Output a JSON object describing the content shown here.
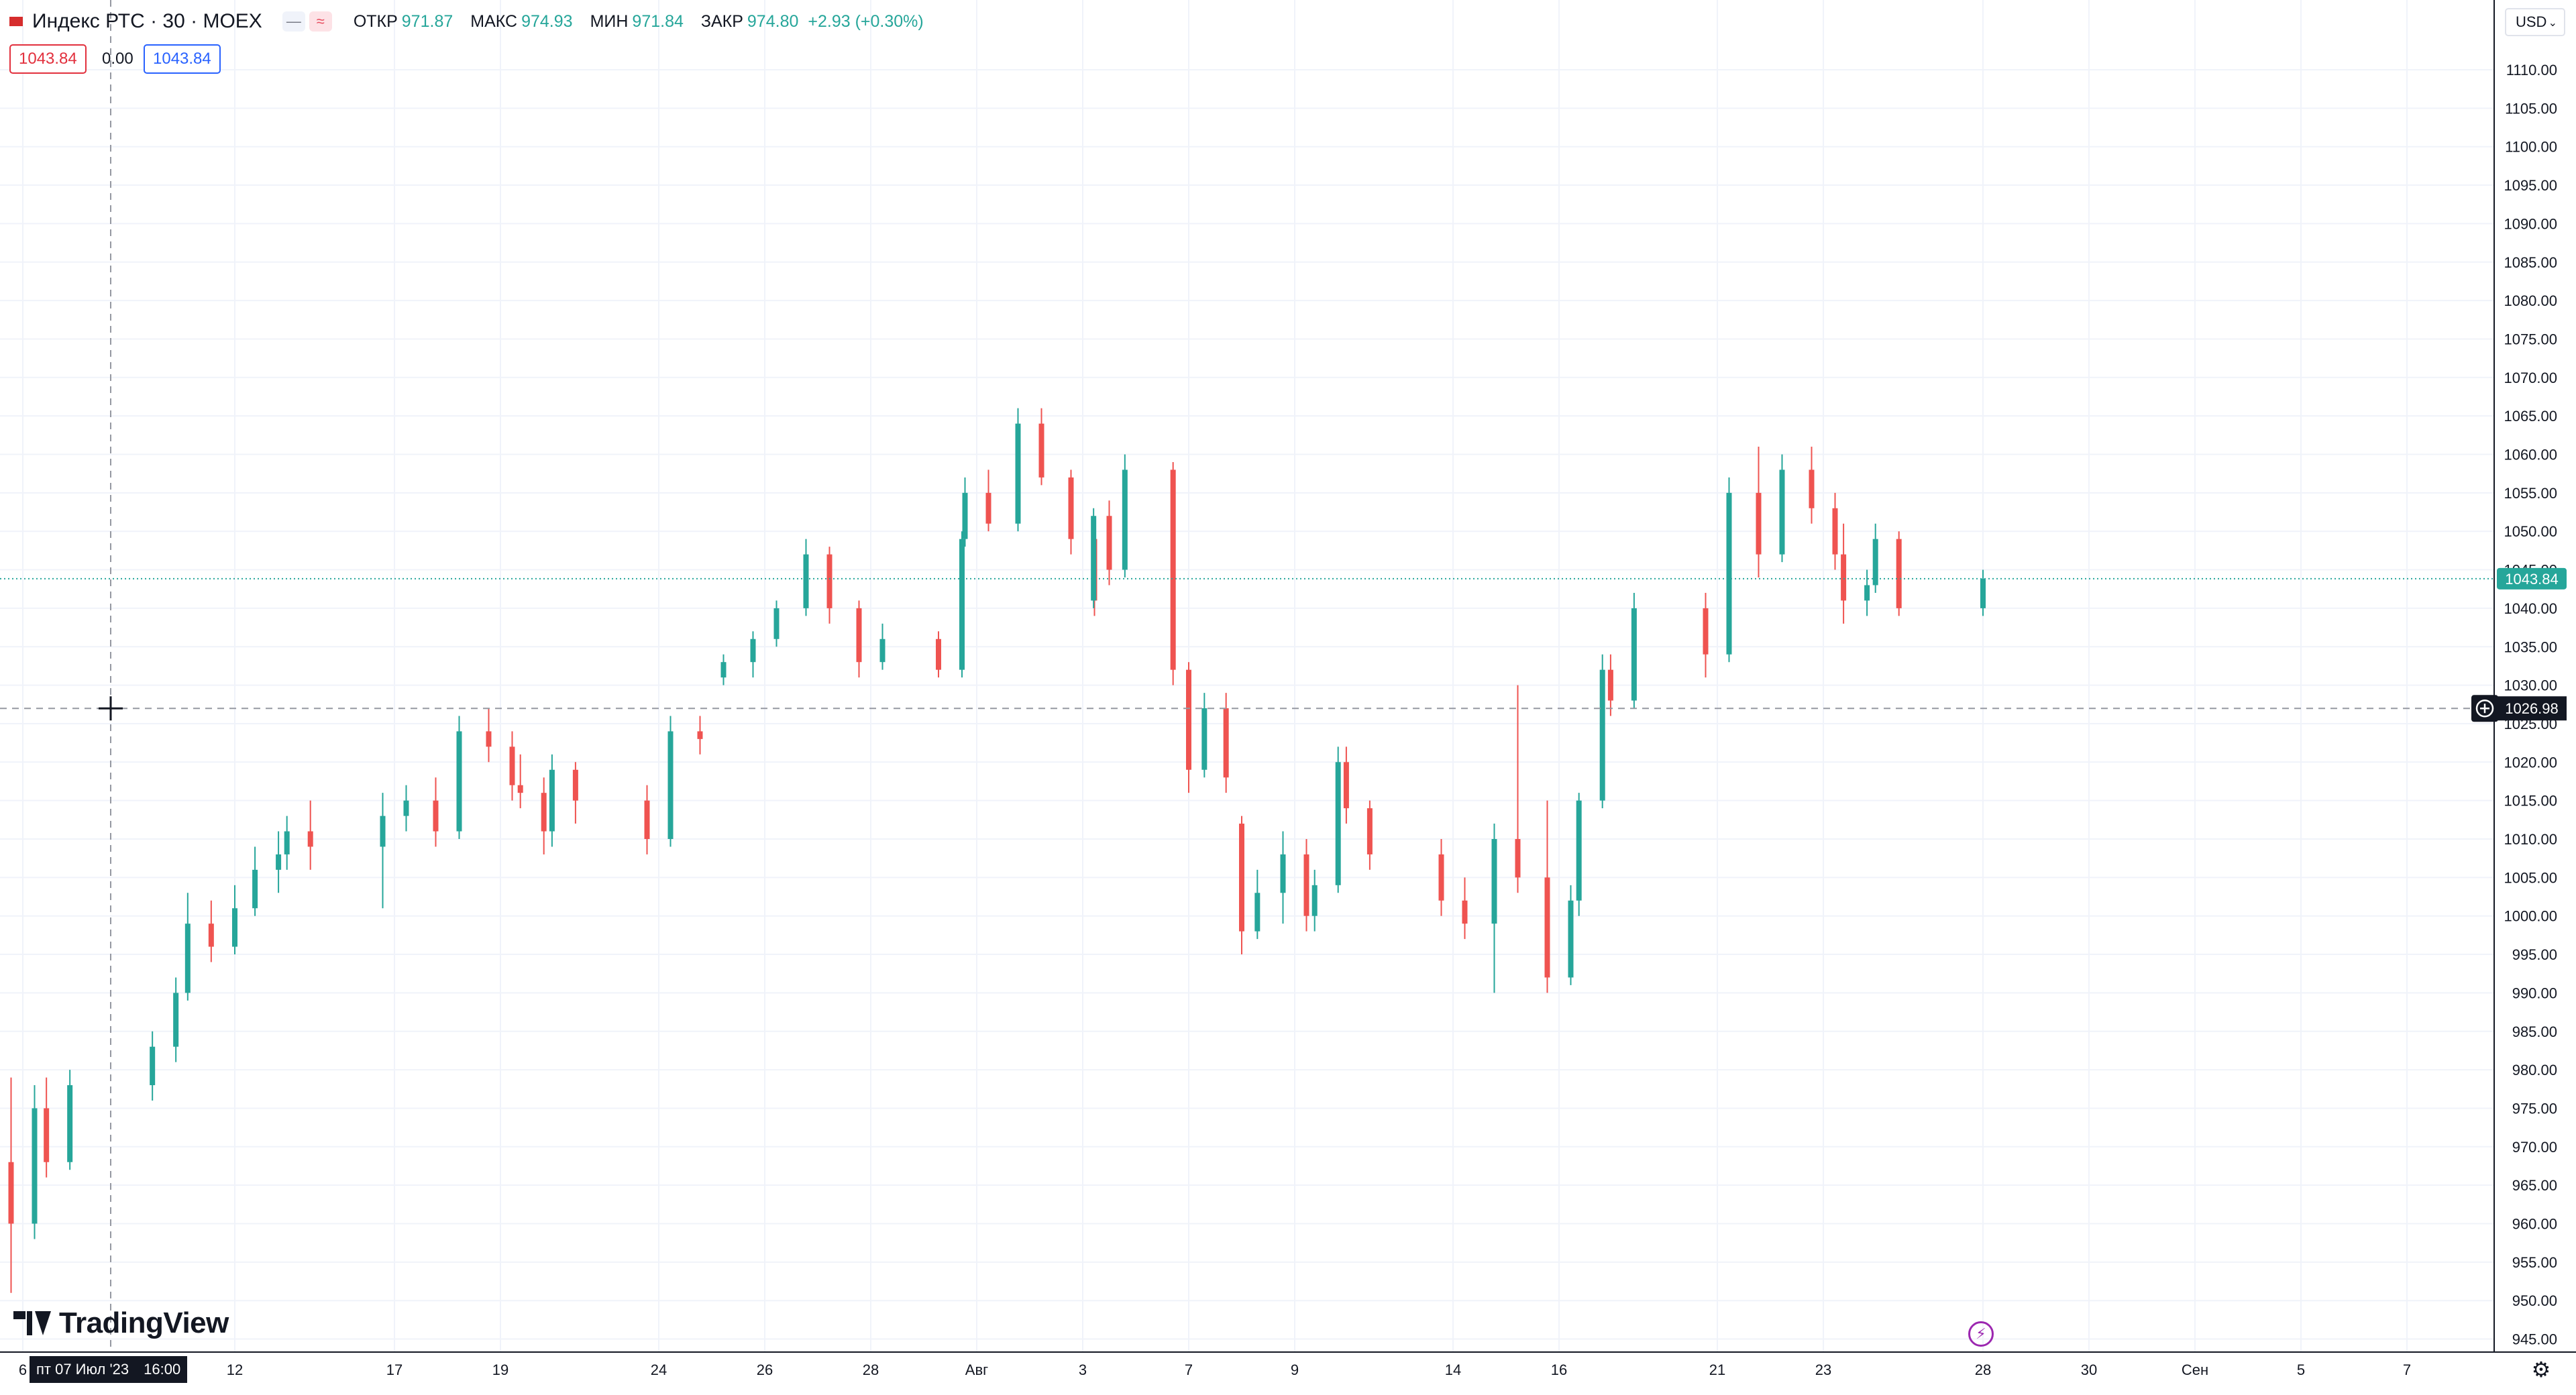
{
  "header": {
    "symbol": "Индекс РТС · 30 · MOEX",
    "open_label": "ОТКР",
    "open_value": "971.87",
    "high_label": "МАКС",
    "high_value": "974.93",
    "low_label": "МИН",
    "low_value": "971.84",
    "close_label": "ЗАКР",
    "close_value": "974.80",
    "change": "+2.93 (+0.30%)",
    "currency": "USD"
  },
  "trade_boxes": {
    "sell": "1043.84",
    "spread": "0.00",
    "buy": "1043.84"
  },
  "crosshair": {
    "price_label": "1026.98",
    "time_label_day": "пт 07 Июл '23",
    "time_label_time": "16:00"
  },
  "brand": "TradingView",
  "colors": {
    "up": "#26a69a",
    "down": "#ef5350",
    "grid": "#f0f3fa",
    "last_price": "#26a69a",
    "dark": "#131722"
  },
  "icons": [
    "search-icon",
    "settings-icon",
    "lightning-icon",
    "plus-circle-icon",
    "chevron-down-icon",
    "wave-icon",
    "minus-icon"
  ],
  "chart_data": {
    "type": "candlestick",
    "xlabel": "",
    "ylabel": "",
    "ylim": [
      943,
      1114
    ],
    "price_ticks": [
      1110,
      1105,
      1100,
      1095,
      1090,
      1085,
      1080,
      1075,
      1070,
      1065,
      1060,
      1055,
      1050,
      1045,
      1040,
      1035,
      1030,
      1025,
      1020,
      1015,
      1010,
      1005,
      1000,
      995,
      990,
      985,
      980,
      975,
      970,
      965,
      960,
      955,
      950,
      945
    ],
    "price_tick_labels": [
      "1110.00",
      "1105.00",
      "1100.00",
      "1095.00",
      "1090.00",
      "1085.00",
      "1080.00",
      "1075.00",
      "1070.00",
      "1065.00",
      "1060.00",
      "1055.00",
      "1050.00",
      "1045.00",
      "1040.00",
      "1035.00",
      "1030.00",
      "1025.00",
      "1020.00",
      "1015.00",
      "1010.00",
      "1005.00",
      "1000.00",
      "995.00",
      "990.00",
      "985.00",
      "980.00",
      "975.00",
      "970.00",
      "965.00",
      "960.00",
      "955.00",
      "950.00",
      "945.00"
    ],
    "time_ticks": [
      {
        "label": "6",
        "date": "2023-07-06"
      },
      {
        "label": "12",
        "date": "2023-07-12"
      },
      {
        "label": "17",
        "date": "2023-07-17"
      },
      {
        "label": "19",
        "date": "2023-07-19"
      },
      {
        "label": "24",
        "date": "2023-07-24"
      },
      {
        "label": "26",
        "date": "2023-07-26"
      },
      {
        "label": "28",
        "date": "2023-07-28"
      },
      {
        "label": "Авг",
        "date": "2023-08-01"
      },
      {
        "label": "3",
        "date": "2023-08-03"
      },
      {
        "label": "7",
        "date": "2023-08-07"
      },
      {
        "label": "9",
        "date": "2023-08-09"
      },
      {
        "label": "14",
        "date": "2023-08-14"
      },
      {
        "label": "16",
        "date": "2023-08-16"
      },
      {
        "label": "21",
        "date": "2023-08-21"
      },
      {
        "label": "23",
        "date": "2023-08-23"
      },
      {
        "label": "28",
        "date": "2023-08-28"
      },
      {
        "label": "30",
        "date": "2023-08-30"
      },
      {
        "label": "Сен",
        "date": "2023-09-01"
      },
      {
        "label": "5",
        "date": "2023-09-05"
      },
      {
        "label": "7",
        "date": "2023-09-07"
      }
    ],
    "last_price": 1043.84,
    "last_price_label": "1043.84",
    "crosshair_price": 1026.98,
    "series": [
      {
        "date": "2023-07-06",
        "open": 968,
        "high": 979,
        "low": 951,
        "close": 960
      },
      {
        "date": "2023-07-06",
        "open": 960,
        "high": 978,
        "low": 958,
        "close": 975
      },
      {
        "date": "2023-07-07",
        "open": 975,
        "high": 979,
        "low": 966,
        "close": 968
      },
      {
        "date": "2023-07-07",
        "open": 968,
        "high": 980,
        "low": 967,
        "close": 978
      },
      {
        "date": "2023-07-10",
        "open": 978,
        "high": 985,
        "low": 976,
        "close": 983
      },
      {
        "date": "2023-07-10",
        "open": 983,
        "high": 992,
        "low": 981,
        "close": 990
      },
      {
        "date": "2023-07-11",
        "open": 990,
        "high": 1003,
        "low": 989,
        "close": 999
      },
      {
        "date": "2023-07-11",
        "open": 999,
        "high": 1002,
        "low": 994,
        "close": 996
      },
      {
        "date": "2023-07-12",
        "open": 996,
        "high": 1004,
        "low": 995,
        "close": 1001
      },
      {
        "date": "2023-07-13",
        "open": 1001,
        "high": 1009,
        "low": 1000,
        "close": 1006
      },
      {
        "date": "2023-07-13",
        "open": 1006,
        "high": 1011,
        "low": 1003,
        "close": 1008
      },
      {
        "date": "2023-07-14",
        "open": 1008,
        "high": 1013,
        "low": 1006,
        "close": 1011
      },
      {
        "date": "2023-07-14",
        "open": 1011,
        "high": 1015,
        "low": 1006,
        "close": 1009
      },
      {
        "date": "2023-07-17",
        "open": 1009,
        "high": 1016,
        "low": 1001,
        "close": 1013
      },
      {
        "date": "2023-07-17",
        "open": 1013,
        "high": 1017,
        "low": 1011,
        "close": 1015
      },
      {
        "date": "2023-07-18",
        "open": 1015,
        "high": 1018,
        "low": 1009,
        "close": 1011
      },
      {
        "date": "2023-07-18",
        "open": 1011,
        "high": 1026,
        "low": 1010,
        "close": 1024
      },
      {
        "date": "2023-07-19",
        "open": 1024,
        "high": 1027,
        "low": 1020,
        "close": 1022
      },
      {
        "date": "2023-07-19",
        "open": 1022,
        "high": 1024,
        "low": 1015,
        "close": 1017
      },
      {
        "date": "2023-07-20",
        "open": 1017,
        "high": 1021,
        "low": 1014,
        "close": 1016
      },
      {
        "date": "2023-07-20",
        "open": 1016,
        "high": 1018,
        "low": 1008,
        "close": 1011
      },
      {
        "date": "2023-07-21",
        "open": 1011,
        "high": 1021,
        "low": 1009,
        "close": 1019
      },
      {
        "date": "2023-07-21",
        "open": 1019,
        "high": 1020,
        "low": 1012,
        "close": 1015
      },
      {
        "date": "2023-07-24",
        "open": 1015,
        "high": 1017,
        "low": 1008,
        "close": 1010
      },
      {
        "date": "2023-07-24",
        "open": 1010,
        "high": 1026,
        "low": 1009,
        "close": 1024
      },
      {
        "date": "2023-07-25",
        "open": 1024,
        "high": 1026,
        "low": 1021,
        "close": 1023
      },
      {
        "date": "2023-07-25",
        "open": 1031,
        "high": 1034,
        "low": 1030,
        "close": 1033
      },
      {
        "date": "2023-07-26",
        "open": 1033,
        "high": 1037,
        "low": 1031,
        "close": 1036
      },
      {
        "date": "2023-07-26",
        "open": 1036,
        "high": 1041,
        "low": 1035,
        "close": 1040
      },
      {
        "date": "2023-07-27",
        "open": 1040,
        "high": 1049,
        "low": 1039,
        "close": 1047
      },
      {
        "date": "2023-07-27",
        "open": 1047,
        "high": 1048,
        "low": 1038,
        "close": 1040
      },
      {
        "date": "2023-07-28",
        "open": 1040,
        "high": 1041,
        "low": 1031,
        "close": 1033
      },
      {
        "date": "2023-07-28",
        "open": 1033,
        "high": 1038,
        "low": 1032,
        "close": 1036
      },
      {
        "date": "2023-07-31",
        "open": 1036,
        "high": 1037,
        "low": 1031,
        "close": 1032
      },
      {
        "date": "2023-07-31",
        "open": 1032,
        "high": 1050,
        "low": 1031,
        "close": 1049
      },
      {
        "date": "2023-08-01",
        "open": 1049,
        "high": 1057,
        "low": 1048,
        "close": 1055
      },
      {
        "date": "2023-08-01",
        "open": 1055,
        "high": 1058,
        "low": 1050,
        "close": 1051
      },
      {
        "date": "2023-08-02",
        "open": 1051,
        "high": 1066,
        "low": 1050,
        "close": 1064
      },
      {
        "date": "2023-08-02",
        "open": 1064,
        "high": 1066,
        "low": 1056,
        "close": 1057
      },
      {
        "date": "2023-08-03",
        "open": 1057,
        "high": 1058,
        "low": 1047,
        "close": 1049
      },
      {
        "date": "2023-08-03",
        "open": 1049,
        "high": 1051,
        "low": 1039,
        "close": 1041
      },
      {
        "date": "2023-08-04",
        "open": 1041,
        "high": 1053,
        "low": 1040,
        "close": 1052
      },
      {
        "date": "2023-08-04",
        "open": 1052,
        "high": 1054,
        "low": 1043,
        "close": 1045
      },
      {
        "date": "2023-08-04",
        "open": 1045,
        "high": 1060,
        "low": 1044,
        "close": 1058
      },
      {
        "date": "2023-08-07",
        "open": 1058,
        "high": 1059,
        "low": 1030,
        "close": 1032
      },
      {
        "date": "2023-08-07",
        "open": 1032,
        "high": 1033,
        "low": 1016,
        "close": 1019
      },
      {
        "date": "2023-08-07",
        "open": 1019,
        "high": 1029,
        "low": 1018,
        "close": 1027
      },
      {
        "date": "2023-08-08",
        "open": 1027,
        "high": 1029,
        "low": 1016,
        "close": 1018
      },
      {
        "date": "2023-08-08",
        "open": 1012,
        "high": 1013,
        "low": 995,
        "close": 998
      },
      {
        "date": "2023-08-08",
        "open": 998,
        "high": 1006,
        "low": 997,
        "close": 1003
      },
      {
        "date": "2023-08-09",
        "open": 1003,
        "high": 1011,
        "low": 999,
        "close": 1008
      },
      {
        "date": "2023-08-09",
        "open": 1008,
        "high": 1010,
        "low": 998,
        "close": 1000
      },
      {
        "date": "2023-08-10",
        "open": 1000,
        "high": 1006,
        "low": 998,
        "close": 1004
      },
      {
        "date": "2023-08-10",
        "open": 1004,
        "high": 1022,
        "low": 1003,
        "close": 1020
      },
      {
        "date": "2023-08-11",
        "open": 1020,
        "high": 1022,
        "low": 1012,
        "close": 1014
      },
      {
        "date": "2023-08-11",
        "open": 1014,
        "high": 1015,
        "low": 1006,
        "close": 1008
      },
      {
        "date": "2023-08-14",
        "open": 1008,
        "high": 1010,
        "low": 1000,
        "close": 1002
      },
      {
        "date": "2023-08-14",
        "open": 1002,
        "high": 1005,
        "low": 997,
        "close": 999
      },
      {
        "date": "2023-08-15",
        "open": 999,
        "high": 1012,
        "low": 990,
        "close": 1010
      },
      {
        "date": "2023-08-15",
        "open": 1010,
        "high": 1030,
        "low": 1003,
        "close": 1005
      },
      {
        "date": "2023-08-16",
        "open": 1005,
        "high": 1015,
        "low": 990,
        "close": 992
      },
      {
        "date": "2023-08-16",
        "open": 992,
        "high": 1004,
        "low": 991,
        "close": 1002
      },
      {
        "date": "2023-08-17",
        "open": 1002,
        "high": 1016,
        "low": 1000,
        "close": 1015
      },
      {
        "date": "2023-08-17",
        "open": 1015,
        "high": 1034,
        "low": 1014,
        "close": 1032
      },
      {
        "date": "2023-08-18",
        "open": 1032,
        "high": 1034,
        "low": 1026,
        "close": 1028
      },
      {
        "date": "2023-08-18",
        "open": 1028,
        "high": 1042,
        "low": 1027,
        "close": 1040
      },
      {
        "date": "2023-08-21",
        "open": 1040,
        "high": 1042,
        "low": 1031,
        "close": 1034
      },
      {
        "date": "2023-08-21",
        "open": 1034,
        "high": 1057,
        "low": 1033,
        "close": 1055
      },
      {
        "date": "2023-08-22",
        "open": 1055,
        "high": 1061,
        "low": 1044,
        "close": 1047
      },
      {
        "date": "2023-08-22",
        "open": 1047,
        "high": 1060,
        "low": 1046,
        "close": 1058
      },
      {
        "date": "2023-08-23",
        "open": 1058,
        "high": 1061,
        "low": 1051,
        "close": 1053
      },
      {
        "date": "2023-08-23",
        "open": 1053,
        "high": 1055,
        "low": 1045,
        "close": 1047
      },
      {
        "date": "2023-08-24",
        "open": 1047,
        "high": 1051,
        "low": 1038,
        "close": 1041
      },
      {
        "date": "2023-08-24",
        "open": 1041,
        "high": 1045,
        "low": 1039,
        "close": 1043
      },
      {
        "date": "2023-08-25",
        "open": 1043,
        "high": 1051,
        "low": 1042,
        "close": 1049
      },
      {
        "date": "2023-08-25",
        "open": 1049,
        "high": 1050,
        "low": 1039,
        "close": 1040
      },
      {
        "date": "2023-08-28",
        "open": 1040,
        "high": 1045,
        "low": 1039,
        "close": 1043.84
      }
    ]
  }
}
